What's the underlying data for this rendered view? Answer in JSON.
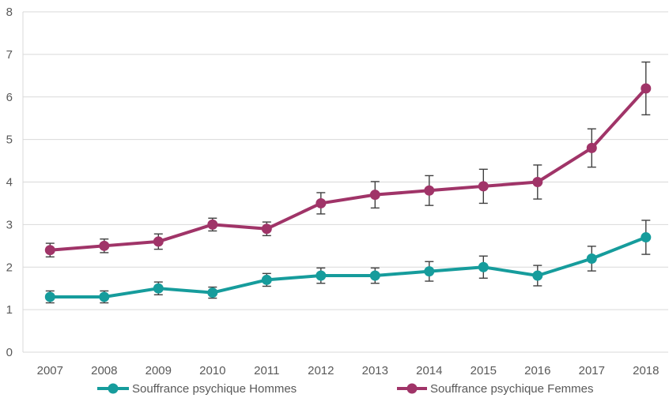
{
  "chart_data": {
    "type": "line",
    "title": "",
    "xlabel": "",
    "ylabel": "",
    "x": [
      "2007",
      "2008",
      "2009",
      "2010",
      "2011",
      "2012",
      "2013",
      "2014",
      "2015",
      "2016",
      "2017",
      "2018"
    ],
    "series": [
      {
        "name": "Souffrance psychique Hommes",
        "color": "#169C9C",
        "values": [
          1.3,
          1.3,
          1.5,
          1.4,
          1.7,
          1.8,
          1.8,
          1.9,
          2.0,
          1.8,
          2.2,
          2.7
        ],
        "error_plus_minus": [
          0.14,
          0.14,
          0.15,
          0.13,
          0.15,
          0.18,
          0.18,
          0.23,
          0.26,
          0.24,
          0.29,
          0.4
        ]
      },
      {
        "name": "Souffrance psychique Femmes",
        "color": "#A03468",
        "values": [
          2.4,
          2.5,
          2.6,
          3.0,
          2.9,
          3.5,
          3.7,
          3.8,
          3.9,
          4.0,
          4.8,
          6.2
        ],
        "error_plus_minus": [
          0.16,
          0.16,
          0.18,
          0.15,
          0.16,
          0.25,
          0.31,
          0.35,
          0.4,
          0.4,
          0.45,
          0.62
        ]
      }
    ],
    "ylim": [
      0,
      8
    ],
    "ytick_step": 1,
    "yticks": [
      "0",
      "1",
      "2",
      "3",
      "4",
      "5",
      "6",
      "7",
      "8"
    ],
    "grid": true,
    "legend_position": "bottom",
    "error_bar_color": "#404040",
    "axis_label_color": "#595959",
    "gridline_color": "#D9D9D9"
  }
}
